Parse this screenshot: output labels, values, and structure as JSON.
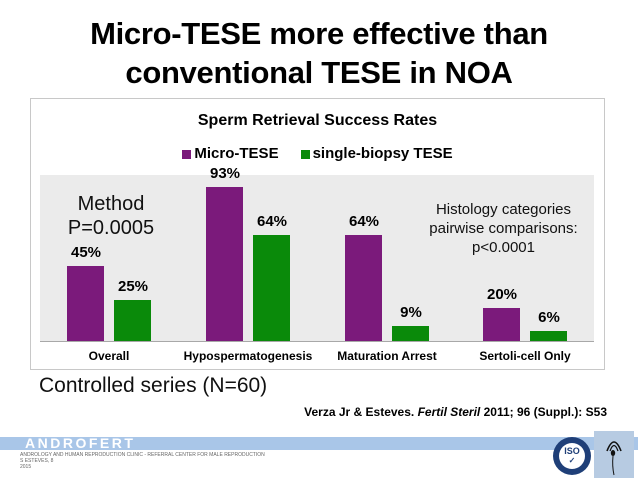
{
  "slide": {
    "title_line1": "Micro-TESE more effective than",
    "title_line2": "conventional TESE in NOA",
    "subnote": "Controlled series (N=60)",
    "citation": {
      "authors": "Verza Jr & Esteves.",
      "journal": "Fertil Steril",
      "details": "2011; 96 (Suppl.): S53"
    }
  },
  "annotations": {
    "method_line1": "Method",
    "method_line2": "P=0.0005",
    "histology_line1": "Histology categories",
    "histology_line2": "pairwise comparisons:",
    "histology_line3": "p<0.0001"
  },
  "colors": {
    "micro_tese": "#7b1a7b",
    "single_biopsy": "#0a8a0a",
    "plot_bg": "#ebebeb",
    "footer_band": "#a9c6e8"
  },
  "footer": {
    "brand": "ANDROFERT",
    "line1": "ANDROLOGY AND HUMAN REPRODUCTION CLINIC - REFERRAL CENTER FOR MALE REPRODUCTION",
    "line2": "S ESTEVES, 8",
    "line3": "2015",
    "iso_label": "ISO",
    "logos": [
      "iso-badge-icon",
      "sperm-logo-icon"
    ]
  },
  "chart_data": {
    "type": "bar",
    "title": "Sperm Retrieval Success Rates",
    "categories": [
      "Overall",
      "Hypospermatogenesis",
      "Maturation Arrest",
      "Sertoli-cell Only"
    ],
    "series": [
      {
        "name": "Micro-TESE",
        "values": [
          45,
          93,
          64,
          20
        ],
        "labels": [
          "45%",
          "93%",
          "64%",
          "20%"
        ],
        "color": "#7b1a7b"
      },
      {
        "name": "single-biopsy TESE",
        "values": [
          25,
          64,
          9,
          6
        ],
        "labels": [
          "25%",
          "64%",
          "9%",
          "6%"
        ],
        "color": "#0a8a0a"
      }
    ],
    "xlabel": "",
    "ylabel": "",
    "ylim": [
      0,
      100
    ],
    "grid": false,
    "legend_position": "top",
    "annotations": [
      "Method P=0.0005",
      "Histology categories pairwise comparisons: p<0.0001"
    ]
  }
}
